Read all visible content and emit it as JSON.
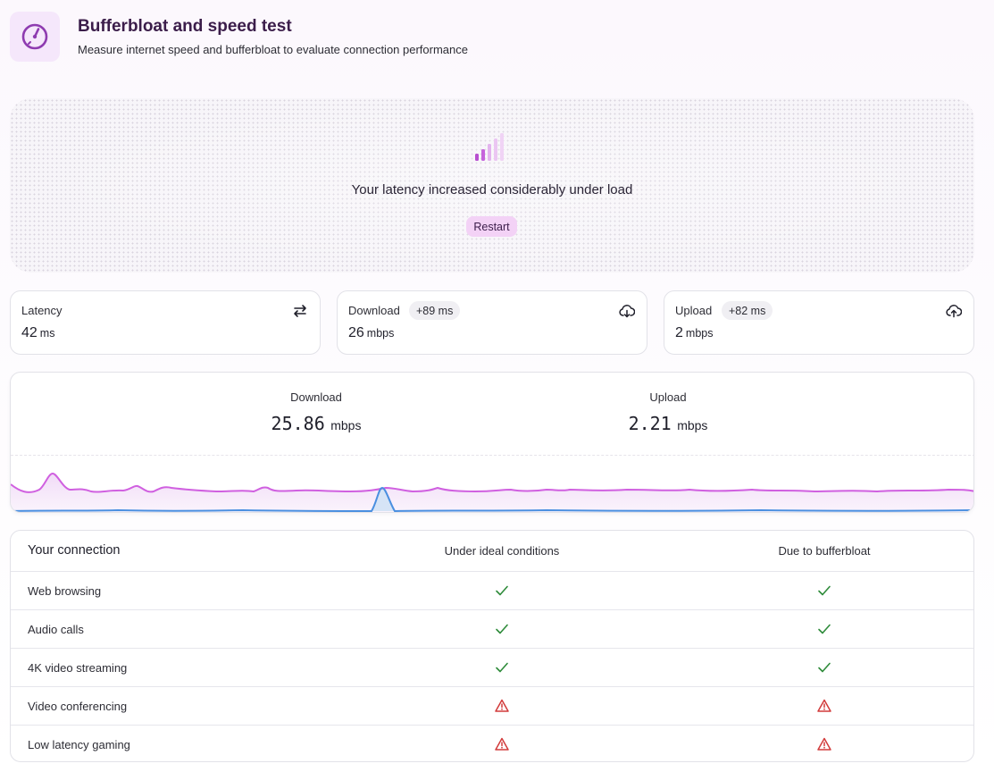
{
  "header": {
    "title": "Bufferbloat and speed test",
    "subtitle": "Measure internet speed and bufferbloat to evaluate connection performance",
    "icon": "speedometer-icon"
  },
  "status": {
    "icon": "signal-bars-icon",
    "message": "Your latency increased considerably under load",
    "restart_label": "Restart"
  },
  "metrics": {
    "latency": {
      "label": "Latency",
      "value": "42",
      "unit": "ms",
      "icon": "swap-arrows-icon"
    },
    "download": {
      "label": "Download",
      "badge": "+89 ms",
      "value": "26",
      "unit": "mbps",
      "icon": "cloud-download-icon"
    },
    "upload": {
      "label": "Upload",
      "badge": "+82 ms",
      "value": "2",
      "unit": "mbps",
      "icon": "cloud-upload-icon"
    }
  },
  "speed": {
    "download": {
      "label": "Download",
      "value": "25.86",
      "unit": "mbps"
    },
    "upload": {
      "label": "Upload",
      "value": "2.21",
      "unit": "mbps"
    }
  },
  "colors": {
    "accent": "#8e3bb0",
    "download_line": "#d060e0",
    "upload_line": "#4a8fe0",
    "ok": "#2e8b3a",
    "warn": "#d23b3b"
  },
  "table": {
    "columns": [
      "Your connection",
      "Under ideal conditions",
      "Due to bufferbloat"
    ],
    "rows": [
      {
        "name": "Web browsing",
        "ideal": "check",
        "bufferbloat": "check"
      },
      {
        "name": "Audio calls",
        "ideal": "check",
        "bufferbloat": "check"
      },
      {
        "name": "4K video streaming",
        "ideal": "check",
        "bufferbloat": "check"
      },
      {
        "name": "Video conferencing",
        "ideal": "warning",
        "bufferbloat": "warning"
      },
      {
        "name": "Low latency gaming",
        "ideal": "warning",
        "bufferbloat": "warning"
      }
    ]
  }
}
